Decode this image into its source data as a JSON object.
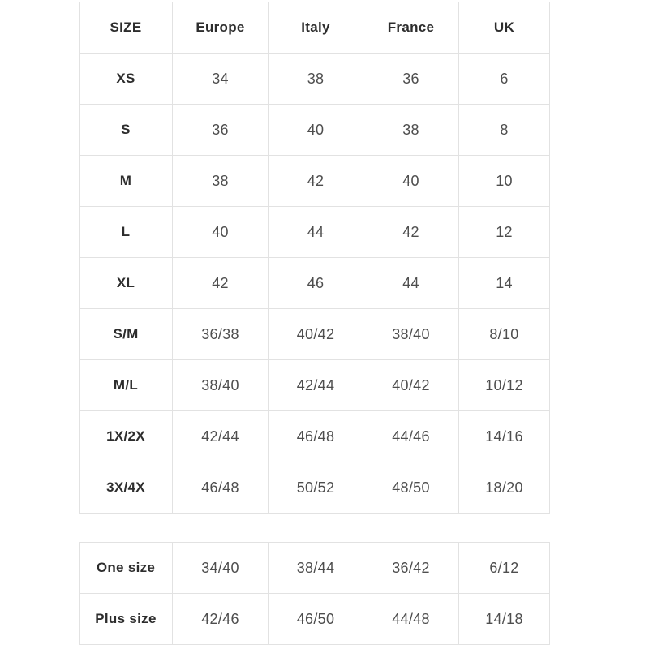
{
  "colors": {
    "background": "#ffffff",
    "border": "#e2e2e2",
    "header_text": "#2d2d2d",
    "cell_text": "#4e4e4e"
  },
  "table1": {
    "headers": [
      "SIZE",
      "Europe",
      "Italy",
      "France",
      "UK"
    ],
    "rows": [
      {
        "size": "XS",
        "values": [
          "34",
          "38",
          "36",
          "6"
        ]
      },
      {
        "size": "S",
        "values": [
          "36",
          "40",
          "38",
          "8"
        ]
      },
      {
        "size": "M",
        "values": [
          "38",
          "42",
          "40",
          "10"
        ]
      },
      {
        "size": "L",
        "values": [
          "40",
          "44",
          "42",
          "12"
        ]
      },
      {
        "size": "XL",
        "values": [
          "42",
          "46",
          "44",
          "14"
        ]
      },
      {
        "size": "S/M",
        "values": [
          "36/38",
          "40/42",
          "38/40",
          "8/10"
        ]
      },
      {
        "size": "M/L",
        "values": [
          "38/40",
          "42/44",
          "40/42",
          "10/12"
        ]
      },
      {
        "size": "1X/2X",
        "values": [
          "42/44",
          "46/48",
          "44/46",
          "14/16"
        ]
      },
      {
        "size": "3X/4X",
        "values": [
          "46/48",
          "50/52",
          "48/50",
          "18/20"
        ]
      }
    ]
  },
  "table2": {
    "rows": [
      {
        "size": "One size",
        "values": [
          "34/40",
          "38/44",
          "36/42",
          "6/12"
        ]
      },
      {
        "size": "Plus size",
        "values": [
          "42/46",
          "46/50",
          "44/48",
          "14/18"
        ]
      }
    ]
  }
}
